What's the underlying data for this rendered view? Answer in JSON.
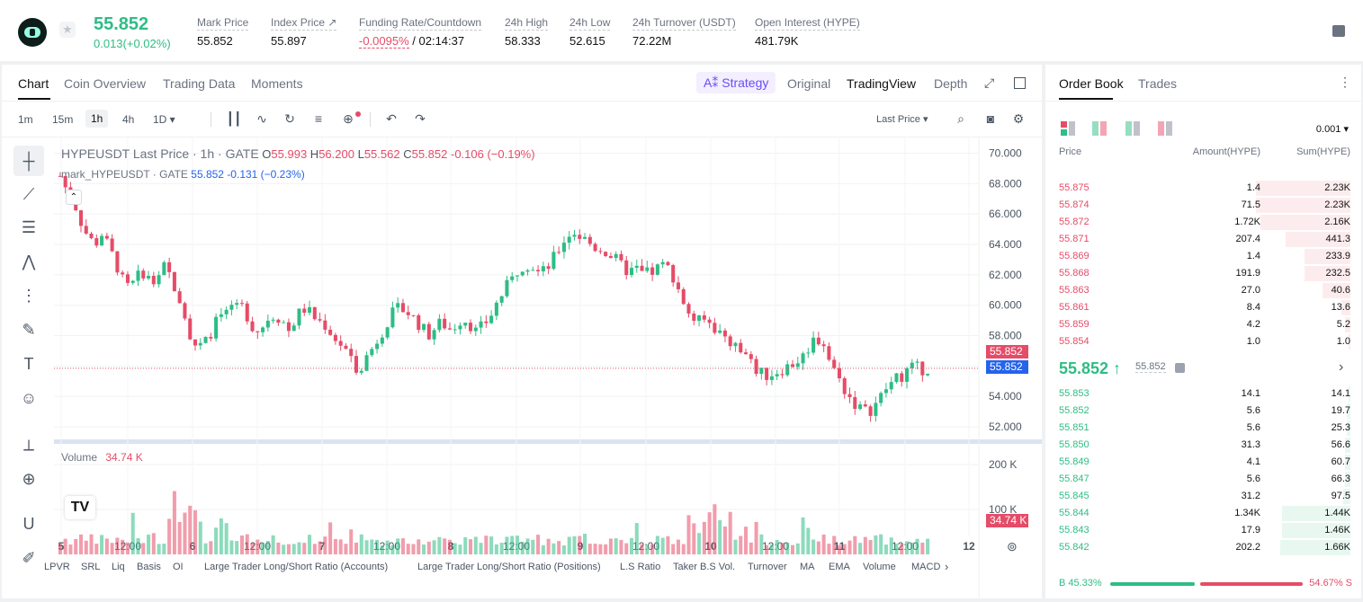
{
  "header": {
    "last_price": "55.852",
    "change": "0.013(+0.02%)",
    "stats": [
      {
        "label": "Mark Price",
        "value": "55.852"
      },
      {
        "label": "Index Price ↗",
        "value": "55.897"
      },
      {
        "label": "Funding Rate/Countdown",
        "value_neg": "-0.0095%",
        "value": "/ 02:14:37"
      },
      {
        "label": "24h High",
        "value": "58.333"
      },
      {
        "label": "24h Low",
        "value": "52.615"
      },
      {
        "label": "24h Turnover (USDT)",
        "value": "72.22M"
      },
      {
        "label": "Open Interest (HYPE)",
        "value": "481.79K"
      }
    ]
  },
  "chart_tabs": [
    "Chart",
    "Coin Overview",
    "Trading Data",
    "Moments"
  ],
  "view_tabs": {
    "strategy": "A⁑ Strategy",
    "original": "Original",
    "tradingview": "TradingView",
    "depth": "Depth"
  },
  "timeframes": [
    "1m",
    "15m",
    "1h",
    "4h",
    "1D ▾"
  ],
  "price_type": "Last Price ▾",
  "legend": {
    "title": "HYPEUSDT Last Price · 1h · GATE",
    "o_label": "O",
    "o": "55.993",
    "h_label": "H",
    "h": "56.200",
    "l_label": "L",
    "l": "55.562",
    "c_label": "C",
    "c": "55.852",
    "chg": "-0.106 (−0.19%)",
    "mark_title": "mark_HYPEUSDT · GATE",
    "mark_val": "55.852",
    "mark_chg": "-0.131 (−0.23%)",
    "volume_label": "Volume",
    "volume_val": "34.74 K"
  },
  "indicators": [
    "LPVR",
    "SRL",
    "Liq",
    "Basis",
    "OI",
    "Large Trader Long/Short Ratio (Accounts)",
    "Large Trader Long/Short Ratio (Positions)",
    "L.S Ratio",
    "Taker B.S Vol.",
    "Turnover",
    "MA",
    "EMA",
    "Volume",
    "MACD"
  ],
  "chart_data": {
    "type": "candlestick",
    "symbol": "HYPEUSDT",
    "interval": "1h",
    "y_range": [
      51.0,
      70.5
    ],
    "y_ticks": [
      "70.000",
      "68.000",
      "66.000",
      "64.000",
      "62.000",
      "60.000",
      "58.000",
      "56.000",
      "54.000",
      "52.000"
    ],
    "x_ticks": [
      "5",
      "12:00",
      "6",
      "12:00",
      "7",
      "12:00",
      "8",
      "12:00",
      "9",
      "12:00",
      "10",
      "12:00",
      "11",
      "12:00",
      "12"
    ],
    "close_path": [
      68.5,
      67.5,
      66.8,
      65.5,
      64.5,
      64.0,
      64.7,
      63.8,
      62.8,
      61.6,
      61.0,
      61.8,
      62.2,
      61.6,
      61.4,
      62.5,
      61.8,
      60.8,
      59.2,
      57.8,
      57.0,
      57.6,
      58.5,
      59.3,
      59.8,
      59.5,
      60.0,
      59.3,
      58.3,
      58.5,
      59.2,
      59.4,
      59.0,
      58.3,
      59.2,
      59.8,
      59.5,
      59.0,
      58.8,
      58.2,
      57.6,
      57.2,
      56.2,
      55.8,
      56.5,
      57.2,
      58.0,
      58.8,
      59.5,
      59.8,
      59.6,
      59.1,
      58.6,
      58.0,
      58.5,
      58.9,
      58.4,
      58.7,
      59.2,
      58.8,
      58.2,
      58.7,
      59.3,
      60.2,
      61.0,
      61.6,
      62.4,
      62.8,
      62.6,
      62.1,
      62.3,
      63.0,
      63.8,
      64.6,
      64.8,
      64.5,
      64.2,
      63.8,
      63.7,
      63.4,
      63.0,
      62.5,
      62.2,
      62.4,
      62.0,
      62.1,
      62.4,
      62.6,
      62.3,
      61.2,
      60.0,
      59.2,
      58.9,
      59.0,
      58.7,
      58.2,
      57.8,
      57.5,
      57.0,
      56.5,
      55.9,
      55.5,
      55.4,
      55.6,
      55.8,
      56.0,
      56.3,
      56.6,
      57.4,
      57.9,
      57.5,
      56.2,
      55.3,
      54.5,
      53.8,
      53.3,
      53.0,
      53.2,
      53.8,
      54.5,
      55.0,
      55.3,
      55.7,
      55.9,
      55.8,
      55.85
    ],
    "volume_range": [
      0,
      230
    ],
    "volume_ticks": [
      "200 K",
      "100 K"
    ],
    "last_volume": "34.74 K",
    "last_price": "55.852",
    "mark_price": "55.852"
  },
  "orderbook": {
    "tabs": [
      "Order Book",
      "Trades"
    ],
    "precision": "0.001 ▾",
    "headers": [
      "Price",
      "Amount(HYPE)",
      "Sum(HYPE)"
    ],
    "asks": [
      {
        "price": "55.875",
        "amount": "1.4",
        "sum": "2.23K",
        "depth": 0.51
      },
      {
        "price": "55.874",
        "amount": "71.5",
        "sum": "2.23K",
        "depth": 0.51
      },
      {
        "price": "55.872",
        "amount": "1.72K",
        "sum": "2.16K",
        "depth": 0.49
      },
      {
        "price": "55.871",
        "amount": "207.4",
        "sum": "441.3",
        "depth": 0.35
      },
      {
        "price": "55.869",
        "amount": "1.4",
        "sum": "233.9",
        "depth": 0.25
      },
      {
        "price": "55.868",
        "amount": "191.9",
        "sum": "232.5",
        "depth": 0.25
      },
      {
        "price": "55.863",
        "amount": "27.0",
        "sum": "40.6",
        "depth": 0.15
      },
      {
        "price": "55.861",
        "amount": "8.4",
        "sum": "13.6",
        "depth": 0.05
      },
      {
        "price": "55.859",
        "amount": "4.2",
        "sum": "5.2",
        "depth": 0.03
      },
      {
        "price": "55.854",
        "amount": "1.0",
        "sum": "1.0",
        "depth": 0.01
      }
    ],
    "mid_price": "55.852 ↑",
    "mark": "55.852",
    "bids": [
      {
        "price": "55.853",
        "amount": "14.1",
        "sum": "14.1",
        "depth": 0.01
      },
      {
        "price": "55.852",
        "amount": "5.6",
        "sum": "19.7",
        "depth": 0.02
      },
      {
        "price": "55.851",
        "amount": "5.6",
        "sum": "25.3",
        "depth": 0.02
      },
      {
        "price": "55.850",
        "amount": "31.3",
        "sum": "56.6",
        "depth": 0.03
      },
      {
        "price": "55.849",
        "amount": "4.1",
        "sum": "60.7",
        "depth": 0.03
      },
      {
        "price": "55.847",
        "amount": "5.6",
        "sum": "66.3",
        "depth": 0.03
      },
      {
        "price": "55.845",
        "amount": "31.2",
        "sum": "97.5",
        "depth": 0.04
      },
      {
        "price": "55.844",
        "amount": "1.34K",
        "sum": "1.44K",
        "depth": 0.37
      },
      {
        "price": "55.843",
        "amount": "17.9",
        "sum": "1.46K",
        "depth": 0.37
      },
      {
        "price": "55.842",
        "amount": "202.2",
        "sum": "1.66K",
        "depth": 0.38
      }
    ],
    "buy_ratio": "B 45.33%",
    "sell_ratio": "54.67% S",
    "buy_fraction": 0.4533
  },
  "colors": {
    "up": "#2ebd85",
    "down": "#e54c67",
    "mark": "#2563eb"
  }
}
